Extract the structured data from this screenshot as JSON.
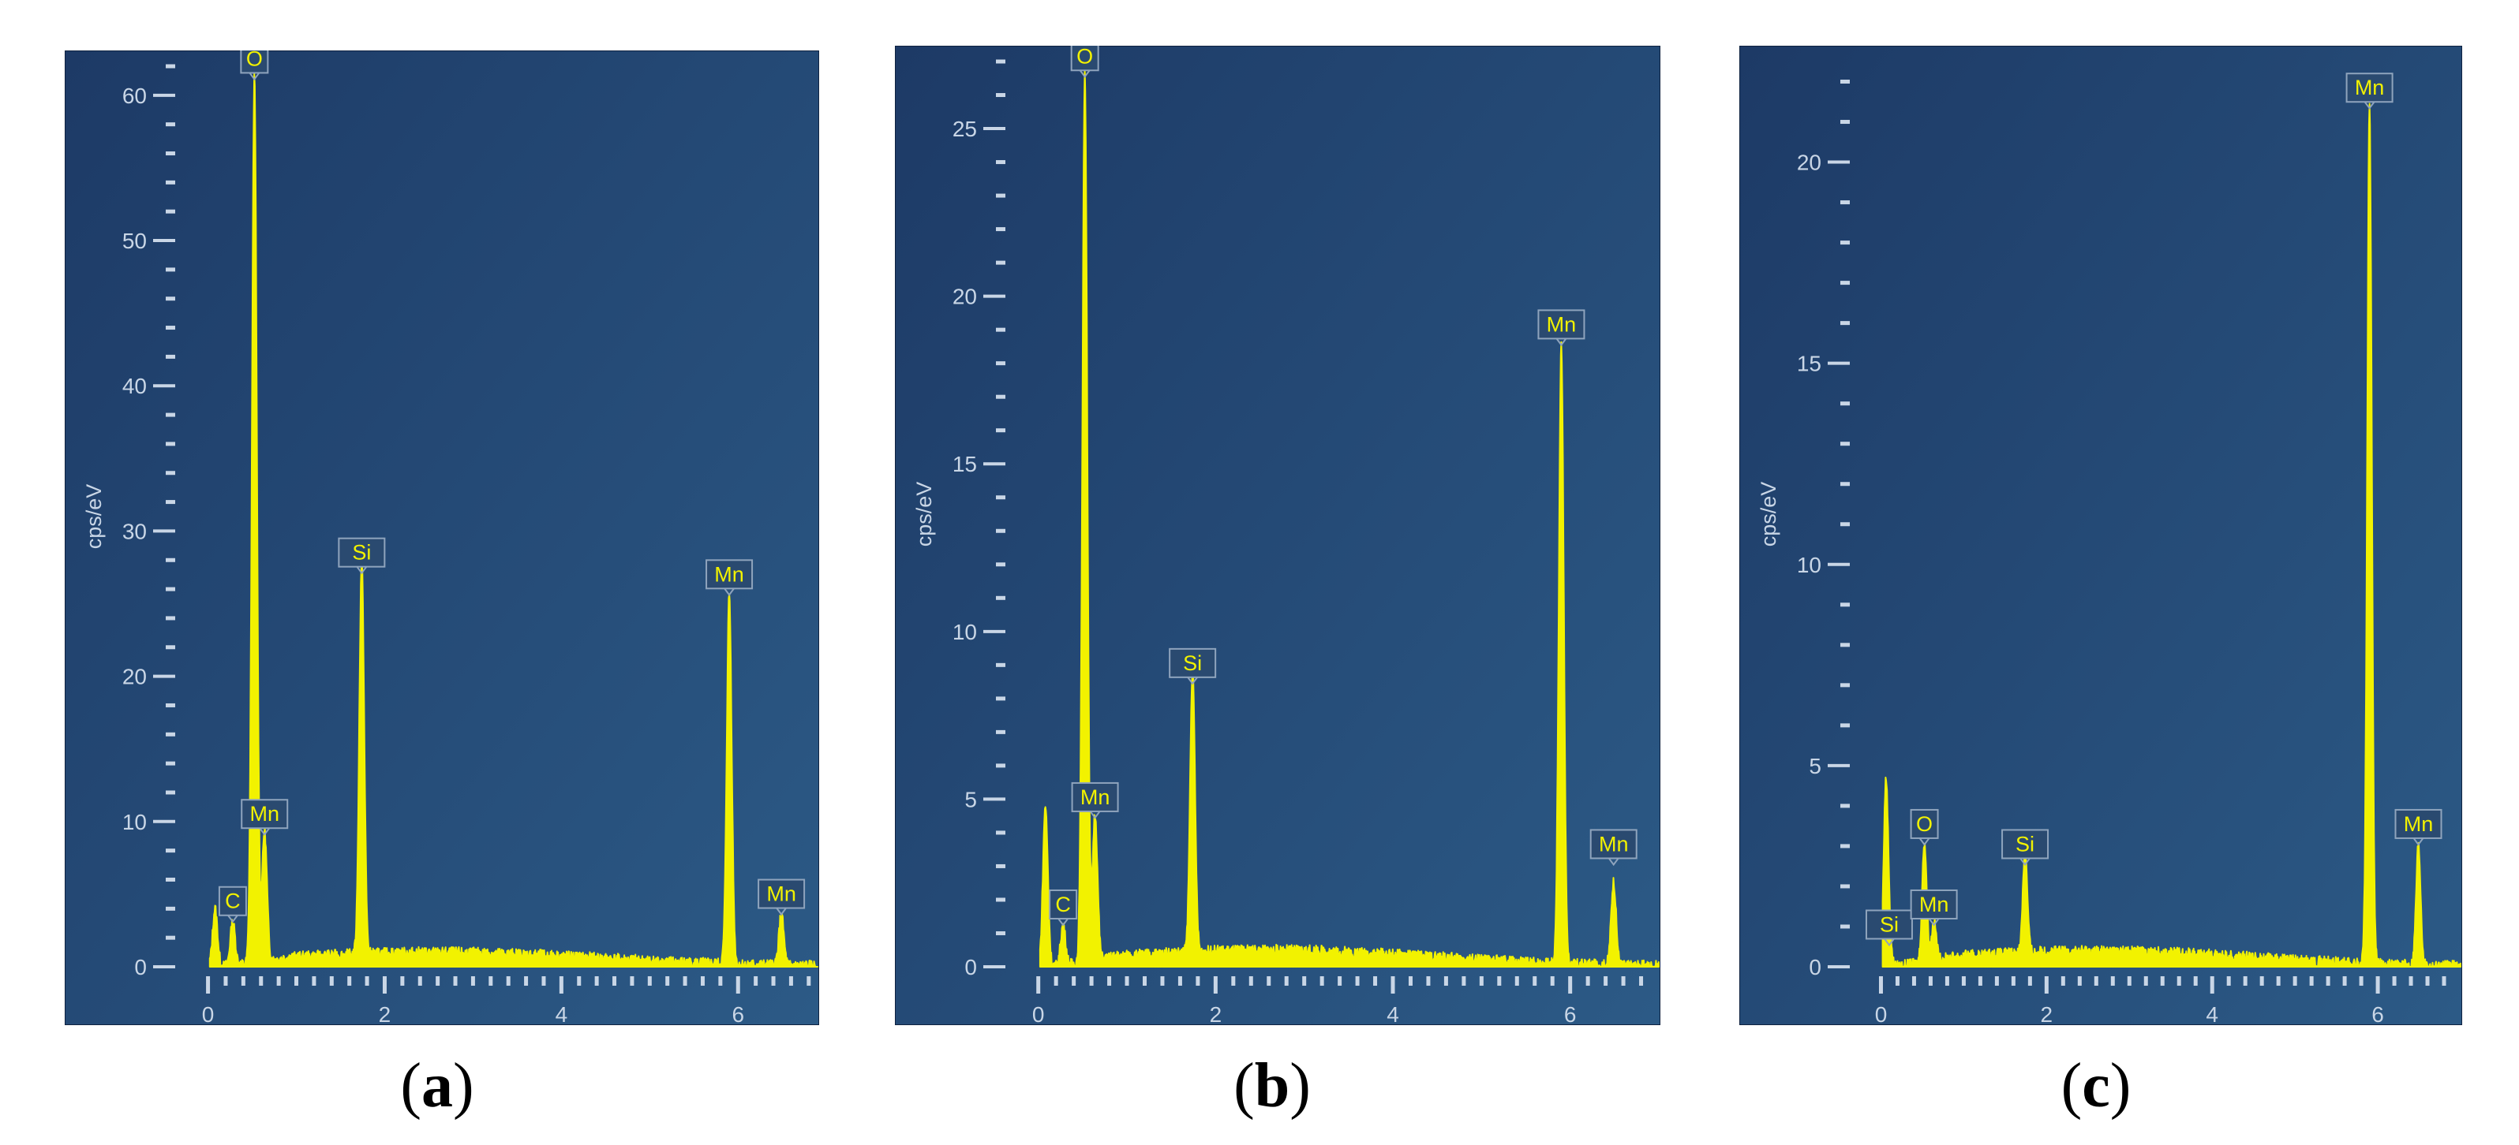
{
  "colors": {
    "background_top": "#1d3a66",
    "background_bottom": "#2c5a86",
    "spectrum": "#f2f200",
    "label_text": "#f2f200",
    "tick": "#c9d6e6",
    "label_box_border": "#8fa4bd"
  },
  "chart_data": [
    {
      "type": "line",
      "caption": "a",
      "ylabel": "cps/eV",
      "xlabel": "",
      "xlim": [
        -0.3,
        6.9
      ],
      "ylim": [
        0,
        62
      ],
      "x_ticks": [
        0,
        2,
        4,
        6
      ],
      "y_ticks": [
        0,
        10,
        20,
        30,
        40,
        50,
        60
      ],
      "peaks": [
        {
          "x": 0.08,
          "y": 4
        },
        {
          "x": 0.28,
          "y": 3
        },
        {
          "x": 0.525,
          "y": 61
        },
        {
          "x": 0.64,
          "y": 9
        },
        {
          "x": 1.74,
          "y": 27
        },
        {
          "x": 5.9,
          "y": 25.5
        },
        {
          "x": 6.49,
          "y": 3.5
        }
      ],
      "labels": [
        {
          "text": "C",
          "x": 0.28,
          "y": 3
        },
        {
          "text": "O",
          "x": 0.525,
          "y": 61
        },
        {
          "text": "Mn",
          "x": 0.64,
          "y": 9
        },
        {
          "text": "Si",
          "x": 1.74,
          "y": 27
        },
        {
          "text": "Mn",
          "x": 5.9,
          "y": 25.5
        },
        {
          "text": "Mn",
          "x": 6.49,
          "y": 3.5
        }
      ],
      "background_level": 1.0
    },
    {
      "type": "line",
      "caption": "b",
      "ylabel": "cps/eV",
      "xlabel": "",
      "xlim": [
        -0.3,
        7.0
      ],
      "ylim": [
        0,
        27
      ],
      "x_ticks": [
        0,
        2,
        4,
        6
      ],
      "y_ticks": [
        0,
        5,
        10,
        15,
        20,
        25
      ],
      "peaks": [
        {
          "x": 0.08,
          "y": 4.8
        },
        {
          "x": 0.28,
          "y": 1.2
        },
        {
          "x": 0.525,
          "y": 26.5
        },
        {
          "x": 0.64,
          "y": 4.4
        },
        {
          "x": 1.74,
          "y": 8.4
        },
        {
          "x": 5.9,
          "y": 18.5
        },
        {
          "x": 6.49,
          "y": 2.5
        }
      ],
      "labels": [
        {
          "text": "C",
          "x": 0.28,
          "y": 1.2
        },
        {
          "text": "O",
          "x": 0.525,
          "y": 26.5
        },
        {
          "text": "Mn",
          "x": 0.64,
          "y": 4.4
        },
        {
          "text": "Si",
          "x": 1.74,
          "y": 8.4
        },
        {
          "text": "Mn",
          "x": 5.9,
          "y": 18.5
        },
        {
          "text": "Mn",
          "x": 6.49,
          "y": 3.0
        }
      ],
      "background_level": 0.5
    },
    {
      "type": "line",
      "caption": "c",
      "ylabel": "cps/eV",
      "xlabel": "",
      "xlim": [
        -0.3,
        7.0
      ],
      "ylim": [
        0,
        22.5
      ],
      "x_ticks": [
        0,
        2,
        4,
        6
      ],
      "y_ticks": [
        0,
        5,
        10,
        15,
        20
      ],
      "peaks": [
        {
          "x": 0.06,
          "y": 4.5
        },
        {
          "x": 0.1,
          "y": 0.5
        },
        {
          "x": 0.525,
          "y": 3.0
        },
        {
          "x": 0.64,
          "y": 1.0
        },
        {
          "x": 1.74,
          "y": 2.5
        },
        {
          "x": 5.9,
          "y": 21.3
        },
        {
          "x": 6.49,
          "y": 3.0
        }
      ],
      "labels": [
        {
          "text": "Si",
          "x": 0.1,
          "y": 0.5
        },
        {
          "text": "O",
          "x": 0.525,
          "y": 3.0
        },
        {
          "text": "Mn",
          "x": 0.64,
          "y": 1.0
        },
        {
          "text": "Si",
          "x": 1.74,
          "y": 2.5
        },
        {
          "text": "Mn",
          "x": 5.9,
          "y": 21.3
        },
        {
          "text": "Mn",
          "x": 6.49,
          "y": 3.0
        }
      ],
      "background_level": 0.4
    }
  ]
}
